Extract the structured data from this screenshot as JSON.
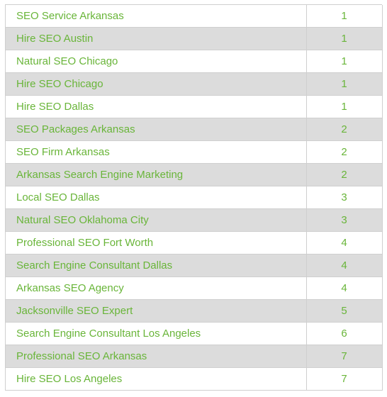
{
  "table": {
    "rows": [
      {
        "keyword": "SEO Service Arkansas",
        "rank": "1"
      },
      {
        "keyword": "Hire SEO Austin",
        "rank": "1"
      },
      {
        "keyword": "Natural SEO Chicago",
        "rank": "1"
      },
      {
        "keyword": "Hire SEO Chicago",
        "rank": "1"
      },
      {
        "keyword": "Hire SEO Dallas",
        "rank": "1"
      },
      {
        "keyword": "SEO Packages Arkansas",
        "rank": "2"
      },
      {
        "keyword": "SEO Firm Arkansas",
        "rank": "2"
      },
      {
        "keyword": "Arkansas Search Engine Marketing",
        "rank": "2"
      },
      {
        "keyword": "Local SEO Dallas",
        "rank": "3"
      },
      {
        "keyword": "Natural SEO Oklahoma City",
        "rank": "3"
      },
      {
        "keyword": "Professional SEO Fort Worth",
        "rank": "4"
      },
      {
        "keyword": "Search Engine Consultant Dallas",
        "rank": "4"
      },
      {
        "keyword": "Arkansas SEO Agency",
        "rank": "4"
      },
      {
        "keyword": "Jacksonville SEO Expert",
        "rank": "5"
      },
      {
        "keyword": "Search Engine Consultant Los Angeles",
        "rank": "6"
      },
      {
        "keyword": "Professional SEO Arkansas",
        "rank": "7"
      },
      {
        "keyword": "Hire SEO Los Angeles",
        "rank": "7"
      }
    ]
  },
  "colors": {
    "text": "#69b539",
    "row_alt": "#dcdcdc",
    "border": "#cfcfcf"
  }
}
